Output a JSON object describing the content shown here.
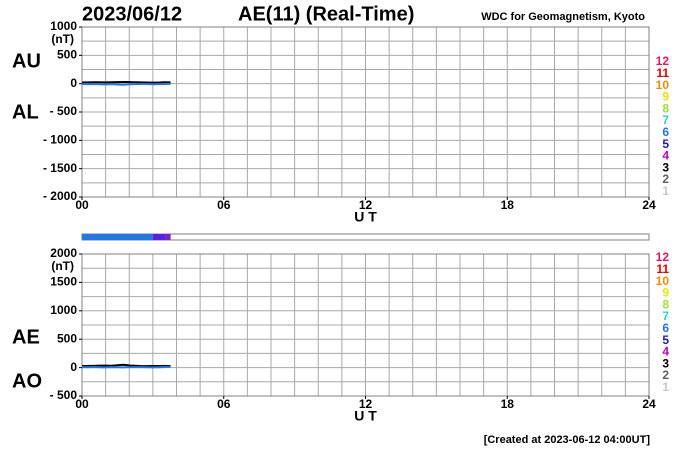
{
  "header": {
    "date": "2023/06/12",
    "title": "AE(11) (Real-Time)",
    "source": "WDC for Geomagnetism, Kyoto"
  },
  "footer": "[Created at 2023-06-12 04:00UT]",
  "hour_legend": [
    {
      "label": "12",
      "color": "#e8175d"
    },
    {
      "label": "11",
      "color": "#e00000"
    },
    {
      "label": "10",
      "color": "#f08c00"
    },
    {
      "label": "9",
      "color": "#e6e600"
    },
    {
      "label": "8",
      "color": "#a0e040"
    },
    {
      "label": "7",
      "color": "#30d0d0"
    },
    {
      "label": "6",
      "color": "#1e78e6"
    },
    {
      "label": "5",
      "color": "#2020a0"
    },
    {
      "label": "4",
      "color": "#c000c0"
    },
    {
      "label": "3",
      "color": "#000000"
    },
    {
      "label": "2",
      "color": "#606060"
    },
    {
      "label": "1",
      "color": "#c8c8c8"
    }
  ],
  "station_strip": {
    "xlim": [
      0,
      24
    ],
    "segments": [
      {
        "x0": 0,
        "x1": 3,
        "color": "#1e78e6"
      },
      {
        "x0": 3,
        "x1": 3.55,
        "color": "#5a1ee6"
      },
      {
        "x0": 3.55,
        "x1": 3.75,
        "color": "#8020c0"
      }
    ]
  },
  "chart_data": [
    {
      "type": "line",
      "x_label": "U T",
      "y_unit": "(nT)",
      "x": [
        0,
        0.25,
        0.5,
        0.75,
        1,
        1.25,
        1.5,
        1.75,
        2,
        2.25,
        2.5,
        2.75,
        3,
        3.25,
        3.5,
        3.75
      ],
      "series": [
        {
          "name": "AU",
          "color": "#000000",
          "values": [
            20,
            22,
            25,
            24,
            22,
            25,
            27,
            30,
            28,
            25,
            22,
            20,
            18,
            20,
            25,
            22
          ]
        },
        {
          "name": "AL",
          "color": "#1e78e6",
          "values": [
            -5,
            -8,
            -6,
            -10,
            -12,
            -8,
            -15,
            -20,
            -10,
            -8,
            -5,
            -6,
            -10,
            -8,
            -5,
            -3
          ]
        }
      ],
      "xlim": [
        0,
        24
      ],
      "xticks": [
        {
          "value": 0,
          "label": "00"
        },
        {
          "value": 6,
          "label": "06"
        },
        12,
        18,
        24
      ],
      "ylim": [
        -2000,
        1000
      ],
      "yticks": [
        {
          "value": -2000,
          "label": "- 2000"
        },
        {
          "value": -1500,
          "label": "- 1500"
        },
        {
          "value": -1000,
          "label": "- 1000"
        },
        {
          "value": -500,
          "label": "- 500"
        },
        0,
        500,
        1000
      ],
      "xgrid": [
        1,
        2,
        3,
        4,
        5,
        6,
        7,
        8,
        9,
        10,
        11,
        12,
        13,
        14,
        15,
        16,
        17,
        18,
        19,
        20,
        21,
        22,
        23
      ],
      "ygrid": [
        -1750,
        -1500,
        -1250,
        -1000,
        -750,
        -500,
        -250,
        0,
        250,
        500,
        750
      ]
    },
    {
      "type": "line",
      "x_label": "U T",
      "y_unit": "(nT)",
      "x": [
        0,
        0.25,
        0.5,
        0.75,
        1,
        1.25,
        1.5,
        1.75,
        2,
        2.25,
        2.5,
        2.75,
        3,
        3.25,
        3.5,
        3.75
      ],
      "series": [
        {
          "name": "AE",
          "color": "#000000",
          "values": [
            25,
            30,
            31,
            34,
            34,
            33,
            42,
            50,
            38,
            33,
            27,
            26,
            28,
            28,
            30,
            25
          ]
        },
        {
          "name": "AO",
          "color": "#1e78e6",
          "values": [
            8,
            7,
            10,
            7,
            5,
            9,
            6,
            5,
            9,
            9,
            9,
            7,
            4,
            6,
            10,
            10
          ]
        }
      ],
      "xlim": [
        0,
        24
      ],
      "xticks": [
        {
          "value": 0,
          "label": "00"
        },
        {
          "value": 6,
          "label": "06"
        },
        12,
        18,
        24
      ],
      "ylim": [
        -500,
        2000
      ],
      "yticks": [
        {
          "value": -500,
          "label": "- 500"
        },
        0,
        500,
        1000,
        1500,
        2000
      ],
      "xgrid": [
        1,
        2,
        3,
        4,
        5,
        6,
        7,
        8,
        9,
        10,
        11,
        12,
        13,
        14,
        15,
        16,
        17,
        18,
        19,
        20,
        21,
        22,
        23
      ],
      "ygrid": [
        -250,
        0,
        250,
        500,
        750,
        1000,
        1250,
        1500,
        1750
      ]
    }
  ]
}
